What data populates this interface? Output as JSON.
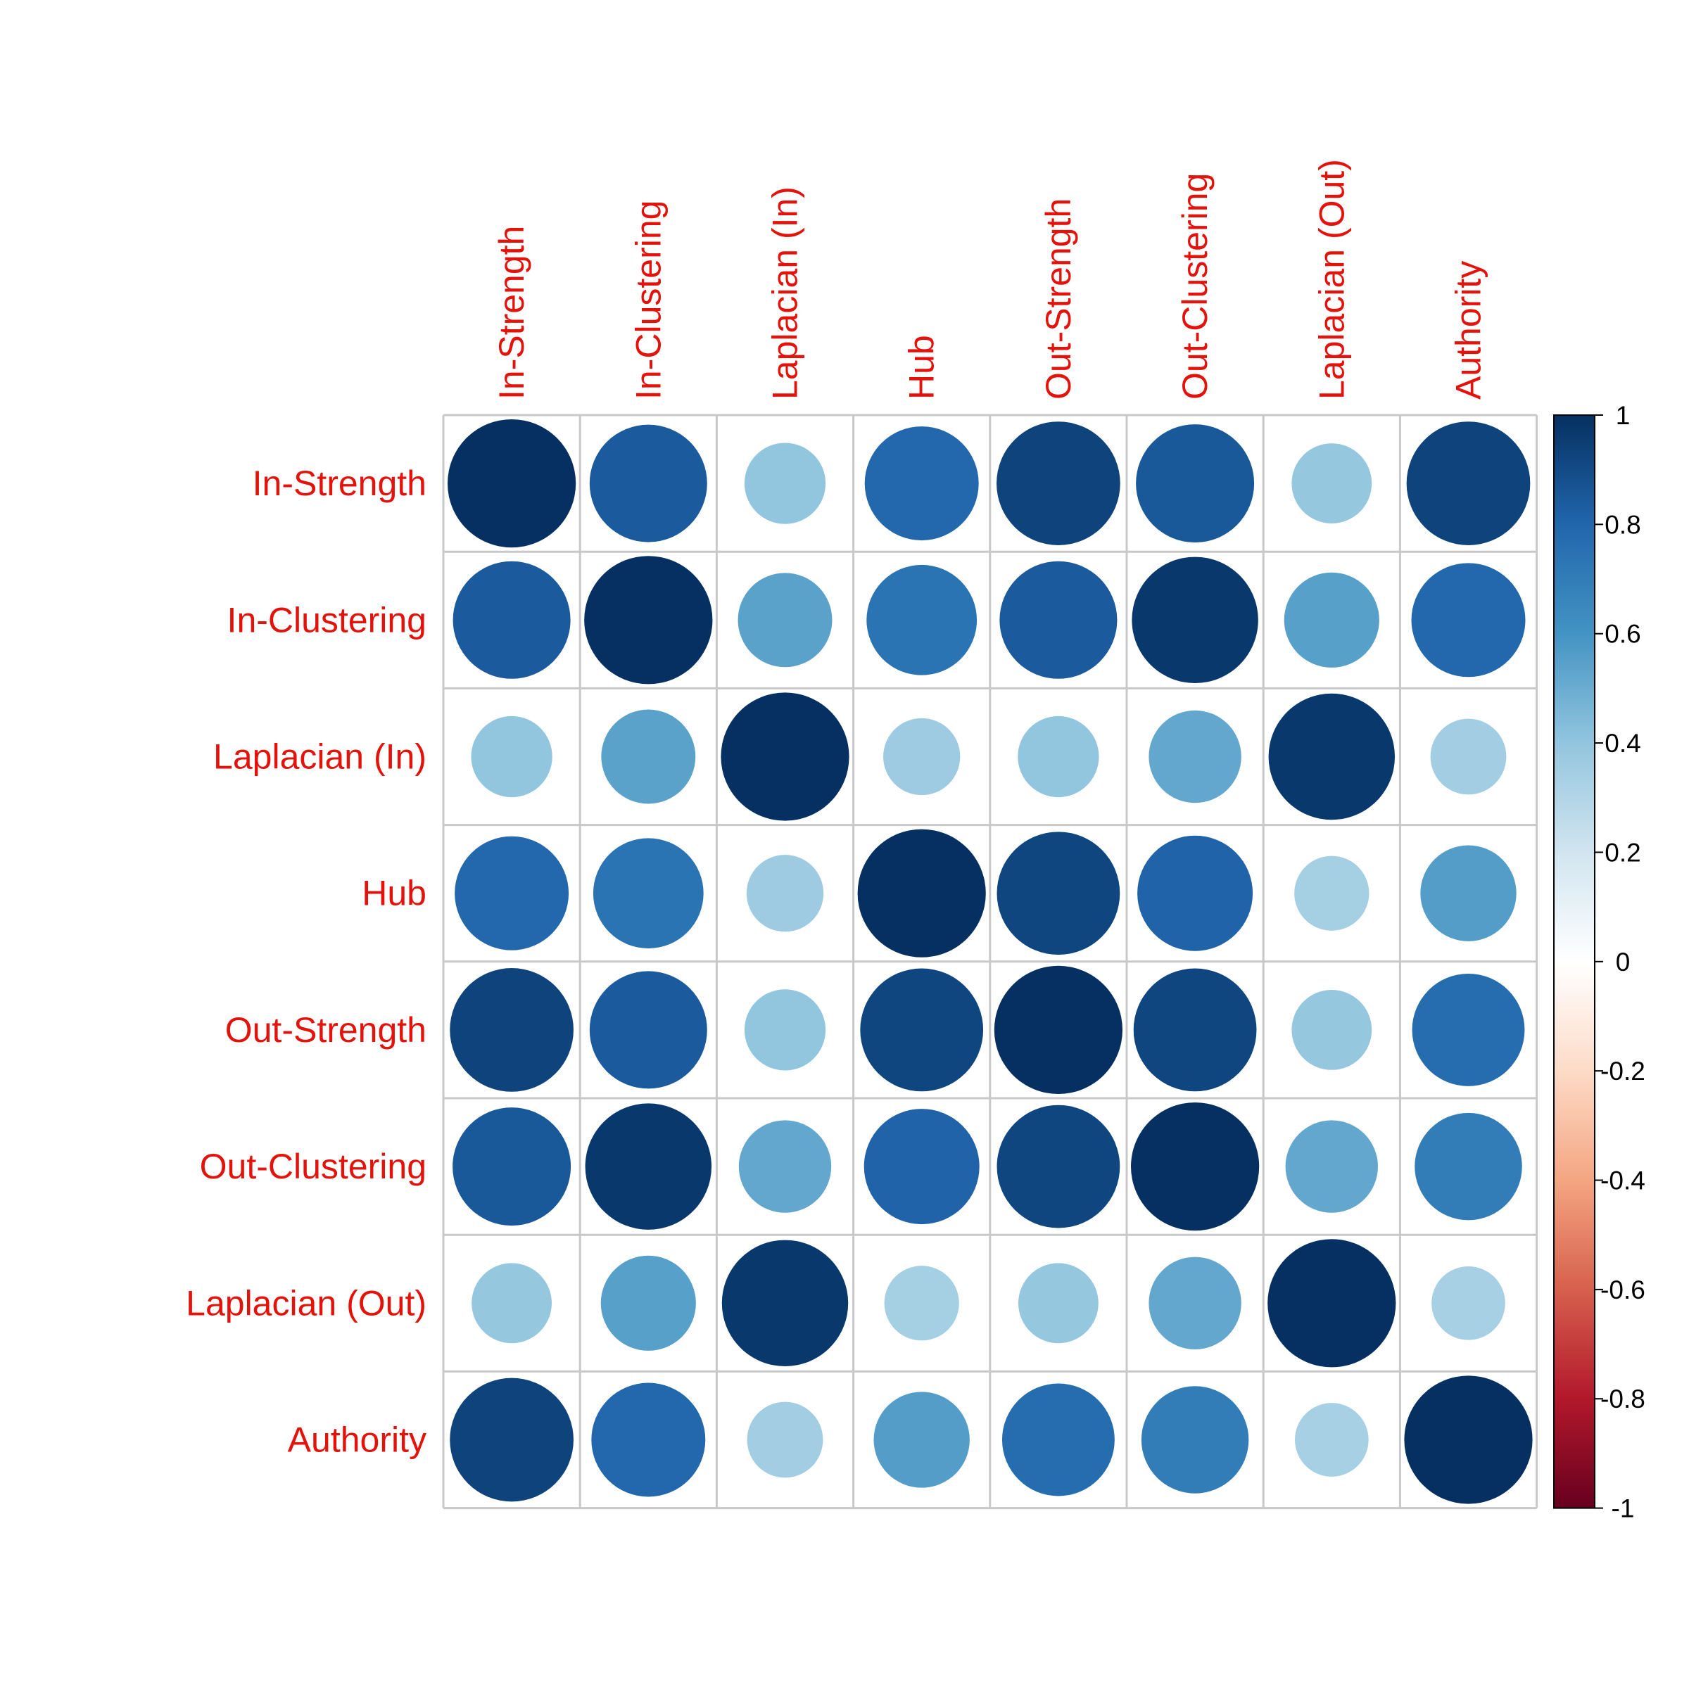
{
  "chart_data": {
    "type": "heatmap",
    "subtype": "correlation-circle-matrix",
    "variables": [
      "In-Strength",
      "In-Clustering",
      "Laplacian (In)",
      "Hub",
      "Out-Strength",
      "Out-Clustering",
      "Laplacian (Out)",
      "Authority"
    ],
    "matrix": [
      [
        1.0,
        0.84,
        0.4,
        0.79,
        0.93,
        0.85,
        0.39,
        0.93
      ],
      [
        0.84,
        1.0,
        0.54,
        0.74,
        0.84,
        0.97,
        0.55,
        0.79
      ],
      [
        0.4,
        0.54,
        1.0,
        0.36,
        0.4,
        0.52,
        0.97,
        0.35
      ],
      [
        0.79,
        0.74,
        0.36,
        1.0,
        0.92,
        0.81,
        0.34,
        0.56
      ],
      [
        0.93,
        0.84,
        0.4,
        0.92,
        1.0,
        0.92,
        0.39,
        0.77
      ],
      [
        0.85,
        0.97,
        0.52,
        0.81,
        0.92,
        1.0,
        0.52,
        0.7
      ],
      [
        0.39,
        0.55,
        0.97,
        0.34,
        0.39,
        0.52,
        1.0,
        0.33
      ],
      [
        0.93,
        0.79,
        0.35,
        0.56,
        0.77,
        0.7,
        0.33,
        1.0
      ]
    ],
    "colorbar": {
      "range": [
        -1,
        1
      ],
      "ticks": [
        "1",
        "0.8",
        "0.6",
        "0.4",
        "0.2",
        "0",
        "-0.2",
        "-0.4",
        "-0.6",
        "-0.8",
        "-1"
      ],
      "colors": [
        "#67001f",
        "#b2182b",
        "#d6604d",
        "#f4a582",
        "#fddbc7",
        "#ffffff",
        "#d1e5f0",
        "#92c5de",
        "#4393c3",
        "#2166ac",
        "#053061"
      ]
    },
    "label_color": "#e3120b",
    "grid": true,
    "legend": "right"
  }
}
